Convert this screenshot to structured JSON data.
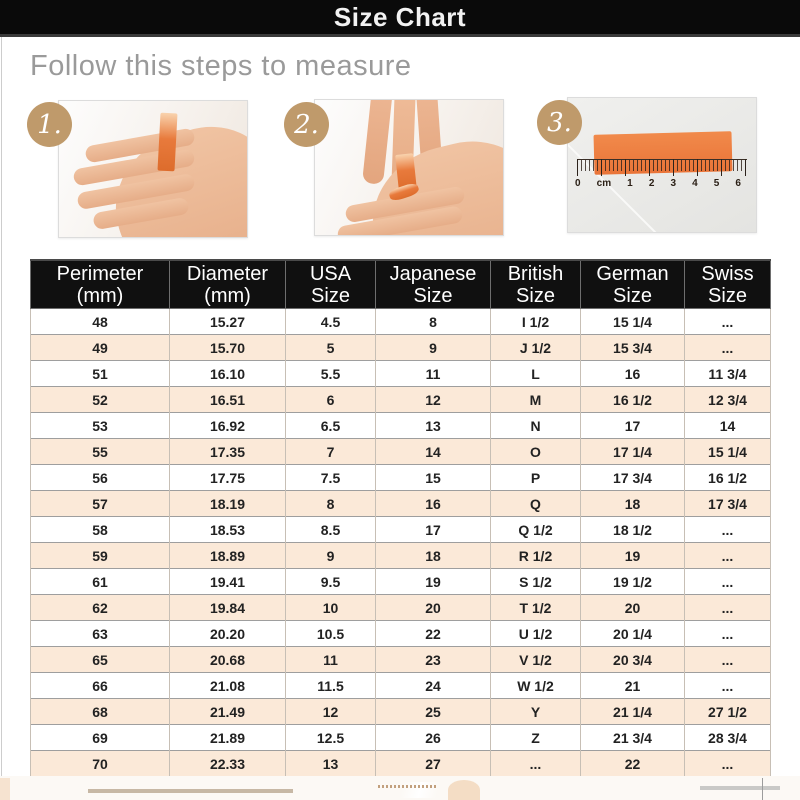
{
  "title_bar": {
    "title": "Size Chart"
  },
  "instructions": {
    "heading": "Follow this steps to measure"
  },
  "steps": [
    {
      "number": "1.",
      "photo": "hand-with-paper-strip-around-finger"
    },
    {
      "number": "2.",
      "photo": "marking-strip-overlap-on-finger"
    },
    {
      "number": "3.",
      "photo": "measuring-strip-length-with-ruler"
    }
  ],
  "ruler": {
    "labels": [
      "0",
      "cm",
      "1",
      "2",
      "3",
      "4",
      "5",
      "6"
    ]
  },
  "colors": {
    "title-bar-bg": "#0a0a0a",
    "title-text": "#f2f2f2",
    "heading-text": "#9a9a9a",
    "badge-bg": "#bf9a6b",
    "badge-text": "#ffffff",
    "strip-orange": "#e87a3c",
    "table-header-bg": "#101010",
    "table-header-text": "#ffffff",
    "row-bg": "#ffffff",
    "row-alt-bg": "#fbe9d8",
    "row-text": "#222222"
  },
  "size_table": {
    "columns": [
      {
        "line1": "Perimeter",
        "line2": "(mm)"
      },
      {
        "line1": "Diameter",
        "line2": "(mm)"
      },
      {
        "line1": "USA",
        "line2": "Size"
      },
      {
        "line1": "Japanese",
        "line2": "Size"
      },
      {
        "line1": "British",
        "line2": "Size"
      },
      {
        "line1": "German",
        "line2": "Size"
      },
      {
        "line1": "Swiss",
        "line2": "Size"
      }
    ],
    "rows": [
      [
        "48",
        "15.27",
        "4.5",
        "8",
        "I 1/2",
        "15 1/4",
        "..."
      ],
      [
        "49",
        "15.70",
        "5",
        "9",
        "J 1/2",
        "15 3/4",
        "..."
      ],
      [
        "51",
        "16.10",
        "5.5",
        "11",
        "L",
        "16",
        "11 3/4"
      ],
      [
        "52",
        "16.51",
        "6",
        "12",
        "M",
        "16 1/2",
        "12 3/4"
      ],
      [
        "53",
        "16.92",
        "6.5",
        "13",
        "N",
        "17",
        "14"
      ],
      [
        "55",
        "17.35",
        "7",
        "14",
        "O",
        "17 1/4",
        "15 1/4"
      ],
      [
        "56",
        "17.75",
        "7.5",
        "15",
        "P",
        "17 3/4",
        "16 1/2"
      ],
      [
        "57",
        "18.19",
        "8",
        "16",
        "Q",
        "18",
        "17 3/4"
      ],
      [
        "58",
        "18.53",
        "8.5",
        "17",
        "Q 1/2",
        "18 1/2",
        "..."
      ],
      [
        "59",
        "18.89",
        "9",
        "18",
        "R 1/2",
        "19",
        "..."
      ],
      [
        "61",
        "19.41",
        "9.5",
        "19",
        "S 1/2",
        "19 1/2",
        "..."
      ],
      [
        "62",
        "19.84",
        "10",
        "20",
        "T 1/2",
        "20",
        "..."
      ],
      [
        "63",
        "20.20",
        "10.5",
        "22",
        "U 1/2",
        "20 1/4",
        "..."
      ],
      [
        "65",
        "20.68",
        "11",
        "23",
        "V 1/2",
        "20 3/4",
        "..."
      ],
      [
        "66",
        "21.08",
        "11.5",
        "24",
        "W 1/2",
        "21",
        "..."
      ],
      [
        "68",
        "21.49",
        "12",
        "25",
        "Y",
        "21 1/4",
        "27 1/2"
      ],
      [
        "69",
        "21.89",
        "12.5",
        "26",
        "Z",
        "21 3/4",
        "28 3/4"
      ],
      [
        "70",
        "22.33",
        "13",
        "27",
        "...",
        "22",
        "..."
      ]
    ]
  }
}
